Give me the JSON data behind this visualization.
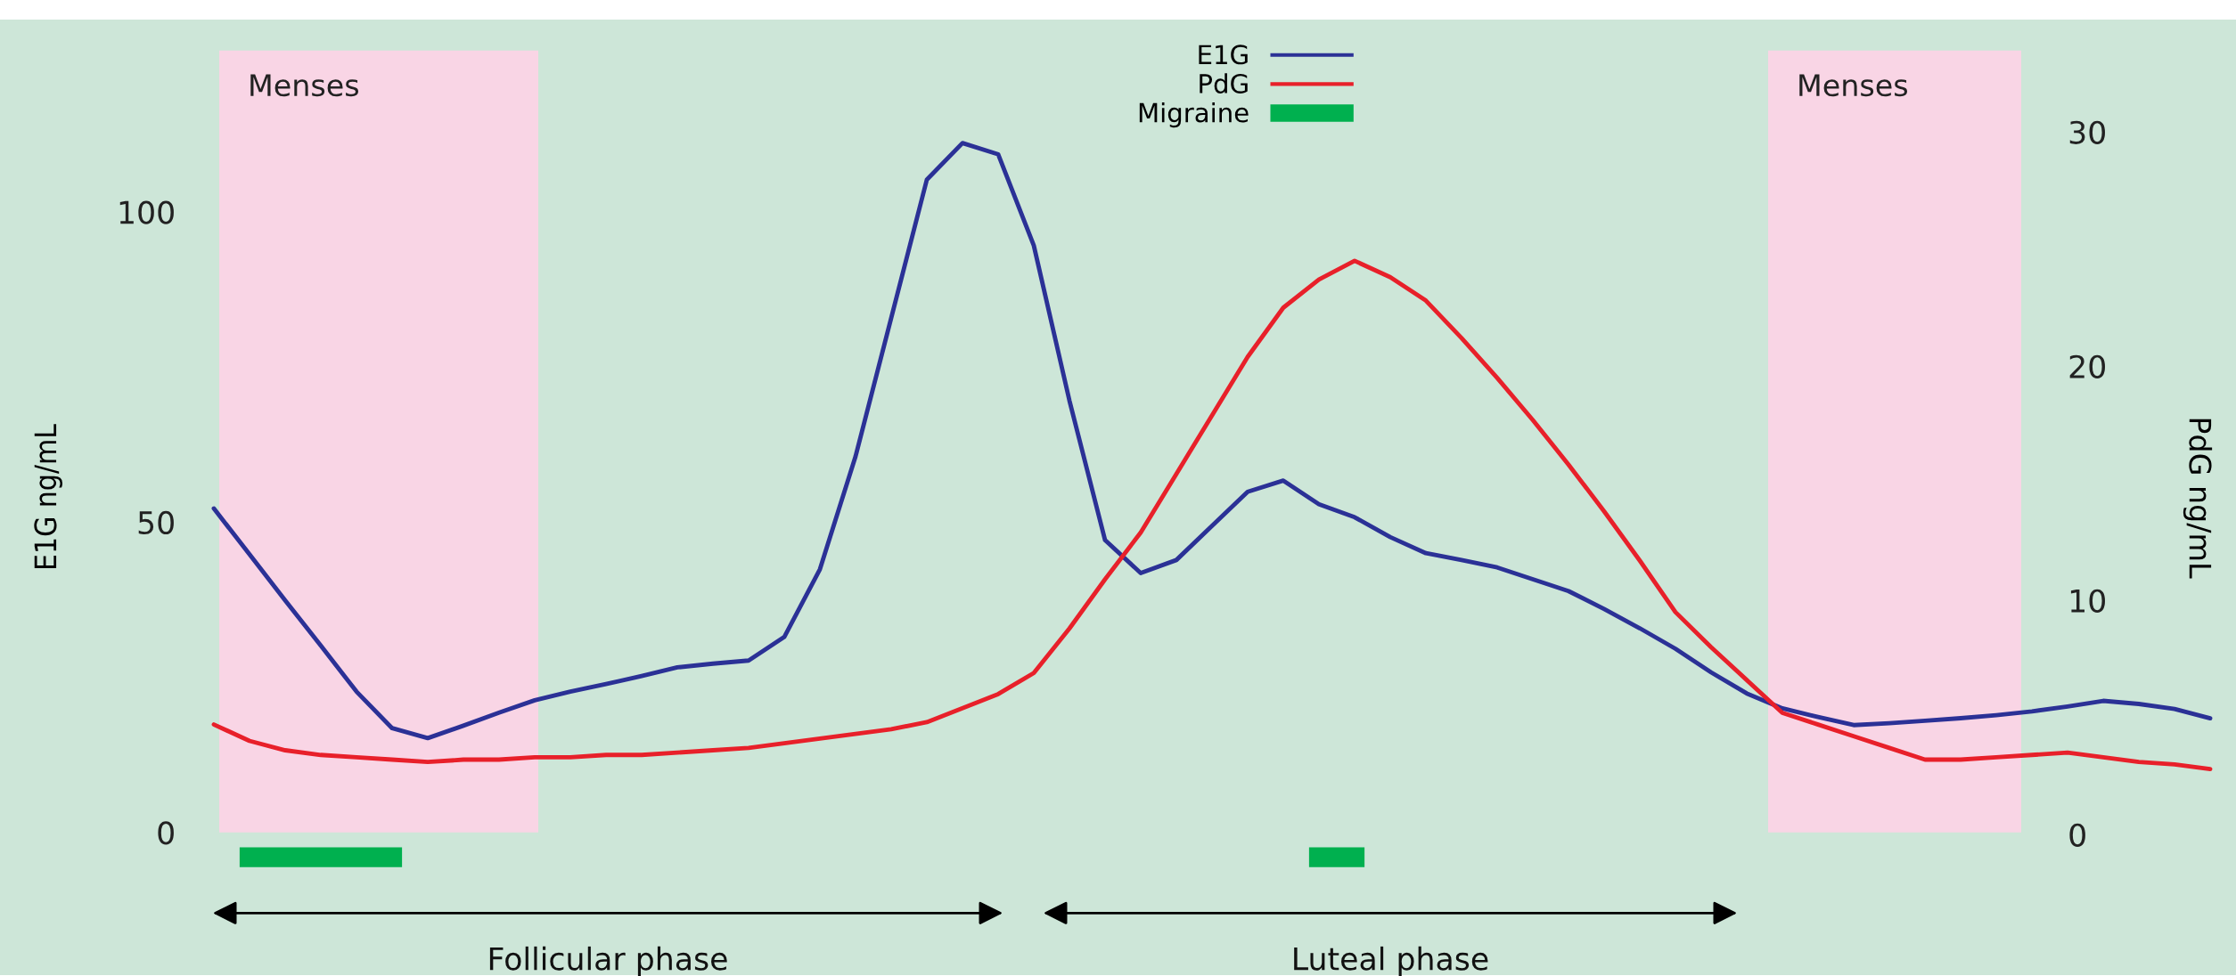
{
  "chart_data": {
    "type": "line",
    "ylabel": "E1G ng/mL",
    "y2label": "PdG ng/mL",
    "categories": [
      null,
      null,
      null,
      null,
      null,
      null,
      null,
      null,
      null,
      null,
      null,
      null,
      null,
      null,
      null,
      null,
      null,
      null,
      null,
      null,
      null,
      null,
      null,
      null,
      null,
      null,
      null,
      null,
      null,
      null,
      null,
      null,
      null,
      null,
      null,
      null,
      null,
      null,
      null,
      null,
      null,
      null,
      null,
      null,
      null,
      null,
      null,
      null,
      null,
      null,
      null,
      null,
      null,
      null,
      null,
      null,
      null
    ],
    "ylim": [
      -23,
      131
    ],
    "yticks": [
      0,
      50,
      100
    ],
    "y2lim": [
      -6.0,
      34.8
    ],
    "y2ticks": [
      0,
      10,
      20,
      30
    ],
    "tick_labels": "y",
    "grid": false,
    "legend": "top",
    "marker": "none",
    "line_style": "solid",
    "series": [
      {
        "name": "E1G",
        "color": "#2b3196",
        "values": [
          52.2,
          44.8,
          37.4,
          30.1,
          22.7,
          16.8,
          15.2,
          17.2,
          19.3,
          21.3,
          22.7,
          23.9,
          25.2,
          26.6,
          27.2,
          27.7,
          31.5,
          42.4,
          60.6,
          82.9,
          105.2,
          111.1,
          109.3,
          94.6,
          69.6,
          47.1,
          41.8,
          43.9,
          49.4,
          54.9,
          56.7,
          52.9,
          50.8,
          47.6,
          45,
          43.9,
          42.7,
          40.8,
          38.9,
          36.0,
          32.9,
          29.6,
          25.8,
          22.4,
          20.0,
          18.6,
          17.3,
          17.6,
          18.0,
          18.4,
          18.9,
          19.5,
          20.3,
          21.2,
          20.7,
          19.9,
          18.4
        ]
      },
      {
        "name": "PdG",
        "color": "#e8202a",
        "axis": "y2",
        "values": [
          4.7,
          4.0,
          3.6,
          3.4,
          3.3,
          3.2,
          3.1,
          3.2,
          3.2,
          3.3,
          3.3,
          3.4,
          3.4,
          3.5,
          3.6,
          3.7,
          3.9,
          4.1,
          4.3,
          4.5,
          4.8,
          5.4,
          6.0,
          6.9,
          8.8,
          10.9,
          12.9,
          15.4,
          17.9,
          20.4,
          22.5,
          23.7,
          24.5,
          23.8,
          22.8,
          21.2,
          19.5,
          17.7,
          15.8,
          13.8,
          11.7,
          9.5,
          8.0,
          6.6,
          5.2,
          4.7,
          4.2,
          3.7,
          3.2,
          3.2,
          3.3,
          3.4,
          3.5,
          3.3,
          3.1,
          3.0,
          2.8
        ]
      },
      {
        "name": "Migraine",
        "color": "#00b04f",
        "values": [
          null,
          -4,
          -4,
          -4,
          -4,
          -4,
          null,
          null,
          null,
          null,
          null,
          null,
          null,
          null,
          null,
          null,
          null,
          null,
          null,
          null,
          null,
          null,
          null,
          null,
          null,
          null,
          null,
          null,
          null,
          null,
          null,
          -4,
          -4,
          null,
          null,
          null,
          null,
          null,
          null,
          null,
          null,
          null,
          null,
          null,
          null,
          null,
          null,
          null,
          null,
          null,
          null,
          null,
          null,
          null,
          null,
          null,
          null
        ]
      }
    ],
    "annotations": [
      "Menses",
      "Menses",
      "Follicular phase",
      "Luteal phase"
    ]
  }
}
